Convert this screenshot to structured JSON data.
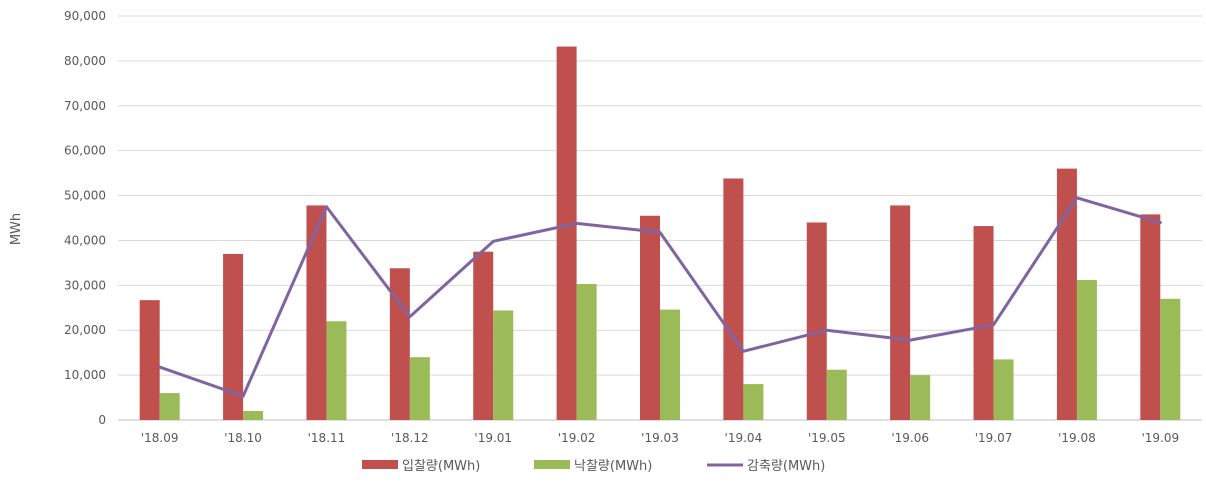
{
  "chart_data": {
    "type": "bar",
    "ylabel": "MWh",
    "ylim": [
      0,
      90000
    ],
    "yticks": [
      "0",
      "10,000",
      "20,000",
      "30,000",
      "40,000",
      "50,000",
      "60,000",
      "70,000",
      "80,000",
      "90,000"
    ],
    "categories": [
      "'18.09",
      "'18.10",
      "'18.11",
      "'18.12",
      "'19.01",
      "'19.02",
      "'19.03",
      "'19.04",
      "'19.05",
      "'19.06",
      "'19.07",
      "'19.08",
      "'19.09"
    ],
    "grid": true,
    "legend_position": "bottom",
    "series": [
      {
        "name": "입찰량(MWh)",
        "kind": "bar",
        "color": "#c0504d",
        "values": [
          26700,
          37000,
          47800,
          33800,
          37500,
          83200,
          45500,
          53800,
          44000,
          47800,
          43200,
          56000,
          45800
        ]
      },
      {
        "name": "낙찰량(MWh)",
        "kind": "bar",
        "color": "#9bbb59",
        "values": [
          6000,
          2000,
          22000,
          14000,
          24400,
          30300,
          24600,
          8000,
          11200,
          10000,
          13500,
          31200,
          27000
        ]
      },
      {
        "name": "감축량(MWh)",
        "kind": "line",
        "color": "#8064a2",
        "values": [
          11800,
          5300,
          47500,
          23000,
          39800,
          43800,
          41800,
          15300,
          20000,
          17800,
          21200,
          49500,
          44000
        ]
      }
    ]
  }
}
